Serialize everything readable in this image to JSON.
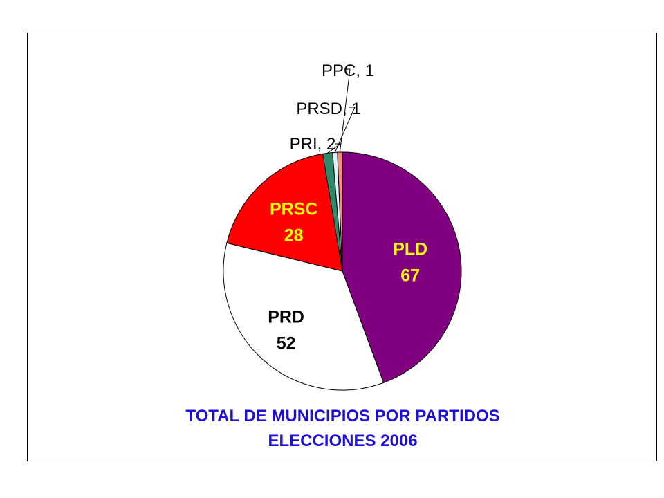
{
  "chart_data": {
    "type": "pie",
    "title": [
      "TOTAL DE MUNICIPIOS POR PARTIDOS",
      "ELECCIONES 2006"
    ],
    "title_color": "#1f10d8",
    "start": "12 o'clock",
    "direction": "clockwise",
    "slices": [
      {
        "name": "PLD",
        "value": 67,
        "color": "#800080",
        "label": [
          "PLD",
          "67"
        ],
        "label_color": "#ffff00"
      },
      {
        "name": "PRD",
        "value": 52,
        "color": "#ffffff",
        "label": [
          "PRD",
          "52"
        ],
        "label_color": "#000000"
      },
      {
        "name": "PRSC",
        "value": 28,
        "color": "#ff0000",
        "label": [
          "PRSC",
          "28"
        ],
        "label_color": "#ffff00"
      },
      {
        "name": "PRI",
        "value": 2,
        "color": "#2f8a6a",
        "label": [
          "PRI, 2"
        ],
        "label_color": "#000000"
      },
      {
        "name": "PRSD",
        "value": 1,
        "color": "#dff3ff",
        "label": [
          "PRSD, 1"
        ],
        "label_color": "#000000"
      },
      {
        "name": "PPC",
        "value": 1,
        "color": "#ff8c7a",
        "label": [
          "PPC, 1"
        ],
        "label_color": "#000000"
      }
    ]
  }
}
